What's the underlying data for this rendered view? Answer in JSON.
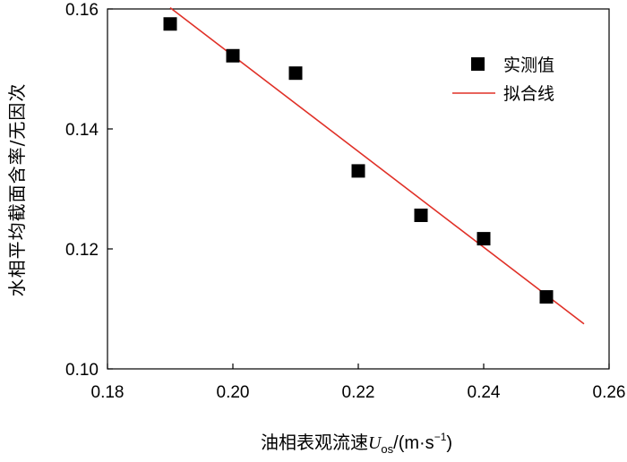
{
  "chart_data": {
    "type": "scatter",
    "title": "",
    "xlabel_prefix": "油相表观流速",
    "xlabel_symbol": "U",
    "xlabel_subscript": "os",
    "xlabel_unit_open": "/(m·s",
    "xlabel_unit_exp": "−1",
    "xlabel_unit_close": ")",
    "ylabel": "水相平均截面含率/无因次",
    "xlim": [
      0.18,
      0.26
    ],
    "ylim": [
      0.1,
      0.16
    ],
    "xticks": [
      "0.18",
      "0.20",
      "0.22",
      "0.24",
      "0.26"
    ],
    "yticks": [
      "0.10",
      "0.12",
      "0.14",
      "0.16"
    ],
    "legend_position": "top-right",
    "series": [
      {
        "name": "实测值",
        "kind": "scatter",
        "marker": "square",
        "color": "#000000",
        "x": [
          0.19,
          0.2,
          0.21,
          0.22,
          0.23,
          0.24,
          0.25
        ],
        "y": [
          0.1575,
          0.1522,
          0.1493,
          0.133,
          0.1256,
          0.1217,
          0.112
        ]
      },
      {
        "name": "拟合线",
        "kind": "line",
        "color": "#e03027",
        "x": [
          0.19,
          0.256
        ],
        "y": [
          0.1602,
          0.1075
        ]
      }
    ]
  }
}
